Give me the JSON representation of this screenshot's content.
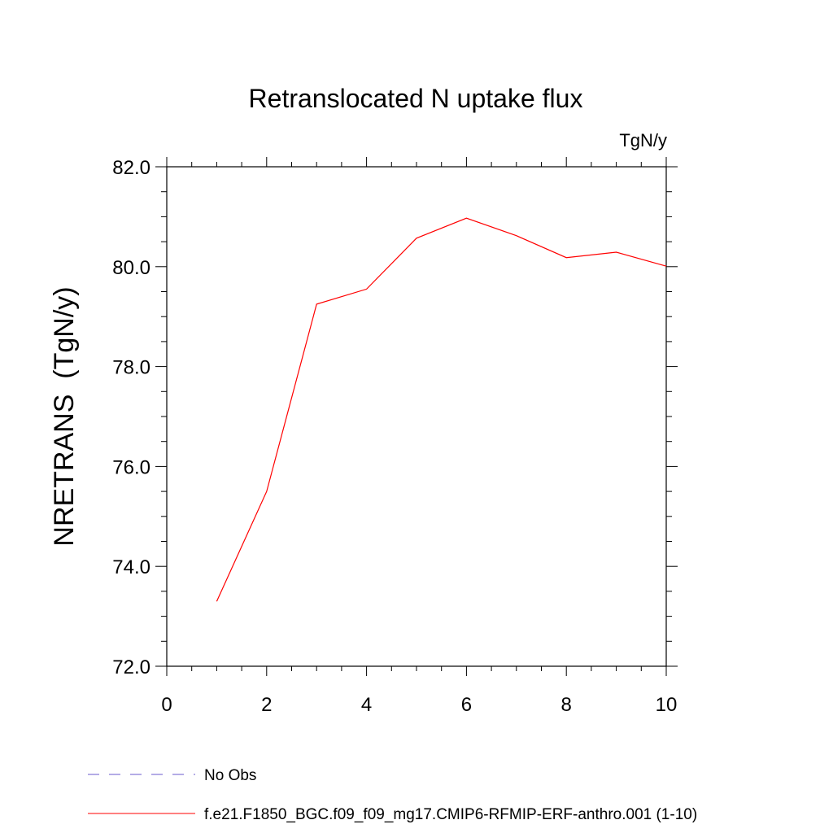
{
  "chart_data": {
    "type": "line",
    "title": "Retranslocated N uptake flux",
    "units_label": "TgN/y",
    "ylabel": "NRETRANS  (TgN/y)",
    "xlabel": "",
    "xlim": [
      0,
      10
    ],
    "ylim": [
      72.0,
      82.0
    ],
    "x_ticks": [
      0,
      2,
      4,
      6,
      8,
      10
    ],
    "x_tick_labels": [
      "0",
      "2",
      "4",
      "6",
      "8",
      "10"
    ],
    "y_ticks": [
      72.0,
      74.0,
      76.0,
      78.0,
      80.0,
      82.0
    ],
    "y_tick_labels": [
      "72.0",
      "74.0",
      "76.0",
      "78.0",
      "80.0",
      "82.0"
    ],
    "grid": false,
    "legend_position": "bottom",
    "series": [
      {
        "name": "f.e21.F1850_BGC.f09_f09_mg17.CMIP6-RFMIP-ERF-anthro.001 (1-10)",
        "color": "#ff0000",
        "dash": "solid",
        "x": [
          1,
          2,
          3,
          4,
          5,
          6,
          7,
          8,
          9,
          10
        ],
        "y": [
          73.3,
          75.5,
          79.25,
          79.55,
          80.57,
          80.97,
          80.62,
          80.18,
          80.29,
          80.01
        ]
      }
    ],
    "legend": [
      {
        "label": "No Obs",
        "color": "#6a5acd",
        "dash": "dashed"
      },
      {
        "label": "f.e21.F1850_BGC.f09_f09_mg17.CMIP6-RFMIP-ERF-anthro.001 (1-10)",
        "color": "#ff0000",
        "dash": "solid"
      }
    ]
  }
}
